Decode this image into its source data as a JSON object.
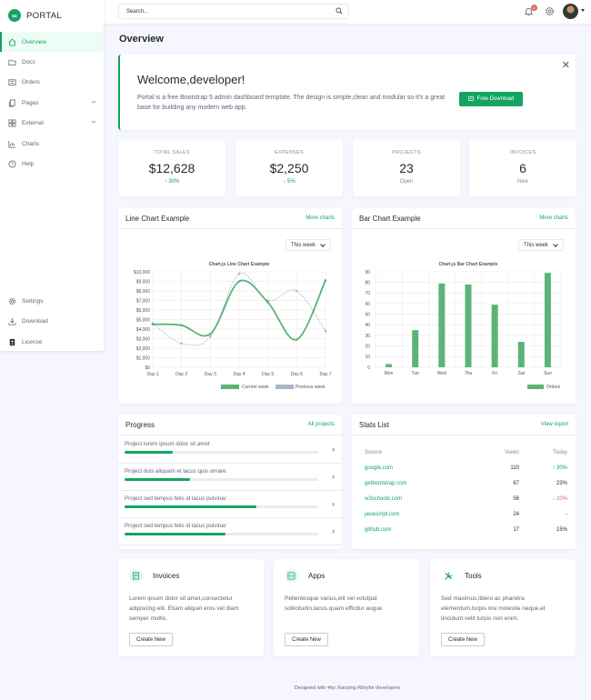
{
  "brand": {
    "name": "PORTAL"
  },
  "sidebar": {
    "items": [
      {
        "label": "Overview",
        "icon": "house-icon"
      },
      {
        "label": "Docs",
        "icon": "folder-icon"
      },
      {
        "label": "Orders",
        "icon": "card-list-icon"
      },
      {
        "label": "Pages",
        "icon": "files-icon"
      },
      {
        "label": "External",
        "icon": "columns-icon"
      },
      {
        "label": "Charts",
        "icon": "chart-icon"
      },
      {
        "label": "Help",
        "icon": "question-icon"
      }
    ],
    "bottom": [
      {
        "label": "Settings",
        "icon": "gear-icon"
      },
      {
        "label": "Download",
        "icon": "download-icon"
      },
      {
        "label": "License",
        "icon": "file-person-icon"
      }
    ]
  },
  "topbar": {
    "search_placeholder": "Search...",
    "notification_count": "1"
  },
  "page": {
    "title": "Overview"
  },
  "welcome": {
    "title": "Welcome,developer!",
    "text": "Portal is a free Bootstrap 5 admin dashboard template. The design is simple,clean and modular so it's a great base for building any modern web app.",
    "button": "Free Download"
  },
  "stats": [
    {
      "label": "TOTAL SALES",
      "value": "$12,628",
      "sub": "↑ 30%"
    },
    {
      "label": "EXPENSES",
      "value": "$2,250",
      "sub": "↓ 5%"
    },
    {
      "label": "PROJECTS",
      "value": "23",
      "sub": "Open"
    },
    {
      "label": "INVOICES",
      "value": "6",
      "sub": "New"
    }
  ],
  "line_card": {
    "title": "Line Chart Example",
    "link": "More charts",
    "select": "This week"
  },
  "bar_card": {
    "title": "Bar Chart Example",
    "link": "More charts",
    "select": "This week"
  },
  "chart_data": [
    {
      "type": "line",
      "title": "Chart.js Line Chart Example",
      "categories": [
        "Day 1",
        "Day 2",
        "Day 3",
        "Day 4",
        "Day 5",
        "Day 6",
        "Day 7"
      ],
      "ylim": [
        0,
        10000
      ],
      "yticks": [
        "$0",
        "$1,000",
        "$2,000",
        "$3,000",
        "$4,000",
        "$5,000",
        "$6,000",
        "$7,000",
        "$8,000",
        "$9,000",
        "$10,000"
      ],
      "series": [
        {
          "name": "Current week",
          "values": [
            4500,
            4400,
            3500,
            9000,
            6800,
            2900,
            9100
          ],
          "color": "#5cb377"
        },
        {
          "name": "Previous week",
          "values": [
            4600,
            2500,
            3200,
            9800,
            7000,
            8000,
            3800
          ],
          "color": "#a9b5c9"
        }
      ],
      "legend": "bottom-right",
      "grid": true
    },
    {
      "type": "bar",
      "title": "Chart.js Bar Chart Example",
      "categories": [
        "Mon",
        "Tue",
        "Wed",
        "Thu",
        "Fri",
        "Sat",
        "Sun"
      ],
      "ylim": [
        0,
        90
      ],
      "yticks": [
        "0",
        "10",
        "20",
        "30",
        "40",
        "50",
        "60",
        "70",
        "80",
        "90"
      ],
      "series": [
        {
          "name": "Orders",
          "values": [
            3,
            35,
            79,
            78,
            59,
            24,
            89
          ],
          "color": "#5cb377"
        }
      ],
      "legend": "bottom-right",
      "grid": true
    }
  ],
  "progress": {
    "title": "Progress",
    "link": "All projects",
    "items": [
      {
        "label": "Project lorem ipsum dolor sit amet",
        "percent": 25
      },
      {
        "label": "Project duis aliquam et lacus quis ornare",
        "percent": 34
      },
      {
        "label": "Project sed tempus felis id lacus pulvinar",
        "percent": 68
      },
      {
        "label": "Project sed tempus felis id lacus pulvinar",
        "percent": 52
      }
    ]
  },
  "stats_list": {
    "title": "Stats List",
    "link": "View report",
    "headers": [
      "Source",
      "Views",
      "Today"
    ],
    "rows": [
      {
        "source": "google.com",
        "views": "110",
        "today": "↑ 30%",
        "trend": "up"
      },
      {
        "source": "getbootstrap.com",
        "views": "67",
        "today": "23%",
        "trend": "none"
      },
      {
        "source": "w3schools.com",
        "views": "56",
        "today": "↓ 20%",
        "trend": "down"
      },
      {
        "source": "javascript.com",
        "views": "24",
        "today": "-",
        "trend": "none"
      },
      {
        "source": "github.com",
        "views": "17",
        "today": "15%",
        "trend": "none"
      }
    ]
  },
  "features": [
    {
      "title": "Invoices",
      "icon": "receipt-icon",
      "text": "Lorem ipsum dolor sit amet,consectetur adipiscing elit. Etiam aliquet eros vel diam semper mollis.",
      "button": "Create New"
    },
    {
      "title": "Apps",
      "icon": "code-square-icon",
      "text": "Pellentesque varius,elit vel volutpat sollicitudin,lacus quam efficitur augue",
      "button": "Create New"
    },
    {
      "title": "Tools",
      "icon": "tools-icon",
      "text": "Sed maximus,libero ac pharetra elementum,turpis nisi molestie neque,et tincidunt velit turpis non enim.",
      "button": "Create New"
    }
  ],
  "footer": {
    "pre": "Designed with",
    "mid": "by",
    "author": "Xiaoying Riley",
    "post": "for developers"
  },
  "colors": {
    "accent": "#15a362",
    "danger": "#d26d69",
    "muted": "#a9b5c9"
  }
}
